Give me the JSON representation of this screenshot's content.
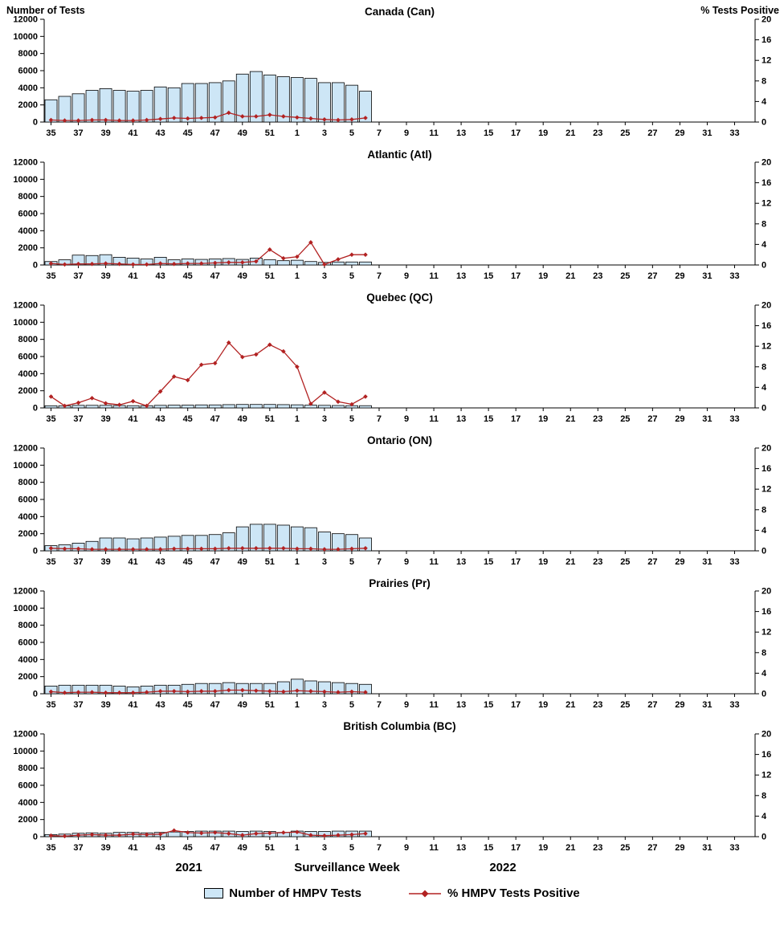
{
  "colors": {
    "bar_fill": "#CDE6F6",
    "bar_stroke": "#000000",
    "line": "#B22222",
    "axis": "#000000"
  },
  "chart_data": {
    "type": "bar",
    "subtype": "bar+line multipanel, bars on left axis, line with diamond markers on right axis",
    "x_axis": {
      "title": "Surveillance Week",
      "year_left": "2021",
      "year_right": "2022",
      "total_weeks": 52,
      "tick_labels": [
        "35",
        "37",
        "39",
        "41",
        "43",
        "45",
        "47",
        "49",
        "51",
        "1",
        "3",
        "5",
        "7",
        "9",
        "11",
        "13",
        "15",
        "17",
        "19",
        "21",
        "23",
        "25",
        "27",
        "29",
        "31",
        "33"
      ],
      "data_weeks": [
        "35",
        "36",
        "37",
        "38",
        "39",
        "40",
        "41",
        "42",
        "43",
        "44",
        "45",
        "46",
        "47",
        "48",
        "49",
        "50",
        "51",
        "52",
        "1",
        "2",
        "3",
        "4",
        "5",
        "6"
      ]
    },
    "y_left": {
      "title": "Number of Tests",
      "min": 0,
      "max": 12000,
      "tick_step": 2000
    },
    "y_right": {
      "title": "% Tests Positive",
      "min": 0,
      "max": 20,
      "tick_step": 4
    },
    "legend": [
      {
        "label": "Number of HMPV Tests",
        "type": "bar"
      },
      {
        "label": "% HMPV Tests Positive",
        "type": "line"
      }
    ],
    "panels": [
      {
        "title": "Canada (Can)",
        "tests": [
          2600,
          3000,
          3300,
          3700,
          3900,
          3700,
          3600,
          3700,
          4100,
          4000,
          4500,
          4500,
          4600,
          4800,
          5600,
          5900,
          5500,
          5300,
          5200,
          5100,
          4600,
          4600,
          4300,
          3600
        ],
        "pct_positive": [
          0.4,
          0.3,
          0.3,
          0.4,
          0.4,
          0.3,
          0.3,
          0.4,
          0.6,
          0.8,
          0.7,
          0.8,
          0.9,
          1.8,
          1.1,
          1.1,
          1.4,
          1.1,
          0.9,
          0.7,
          0.5,
          0.4,
          0.5,
          0.8
        ]
      },
      {
        "title": "Atlantic (Atl)",
        "tests": [
          400,
          600,
          1150,
          1100,
          1200,
          900,
          800,
          700,
          900,
          600,
          700,
          650,
          700,
          750,
          650,
          800,
          600,
          500,
          550,
          400,
          300,
          350,
          350,
          350
        ],
        "pct_positive": [
          0.3,
          0.1,
          0.2,
          0.2,
          0.3,
          0.2,
          0.1,
          0.1,
          0.3,
          0.2,
          0.3,
          0.3,
          0.4,
          0.5,
          0.5,
          0.7,
          3.0,
          1.3,
          1.6,
          4.4,
          0.1,
          1.1,
          2.0,
          2.0
        ]
      },
      {
        "title": "Quebec (QC)",
        "tests": [
          250,
          250,
          300,
          300,
          300,
          280,
          260,
          260,
          300,
          320,
          320,
          350,
          350,
          380,
          400,
          400,
          400,
          380,
          360,
          320,
          300,
          280,
          260,
          260
        ],
        "pct_positive": [
          2.2,
          0.4,
          1.0,
          1.9,
          0.9,
          0.6,
          1.3,
          0.4,
          3.2,
          6.1,
          5.4,
          8.4,
          8.7,
          12.7,
          9.9,
          10.4,
          12.3,
          11.0,
          8.0,
          0.8,
          3.0,
          1.2,
          0.7,
          2.2
        ]
      },
      {
        "title": "Ontario (ON)",
        "tests": [
          600,
          700,
          900,
          1100,
          1500,
          1500,
          1400,
          1500,
          1600,
          1700,
          1800,
          1800,
          1900,
          2100,
          2800,
          3100,
          3100,
          3000,
          2800,
          2700,
          2200,
          2000,
          1900,
          1500
        ],
        "pct_positive": [
          0.5,
          0.4,
          0.4,
          0.3,
          0.3,
          0.3,
          0.3,
          0.3,
          0.3,
          0.4,
          0.4,
          0.4,
          0.4,
          0.5,
          0.5,
          0.5,
          0.5,
          0.5,
          0.4,
          0.4,
          0.3,
          0.3,
          0.4,
          0.5
        ]
      },
      {
        "title": "Prairies (Pr)",
        "tests": [
          900,
          1000,
          1000,
          1000,
          1000,
          900,
          800,
          900,
          1000,
          1000,
          1100,
          1200,
          1200,
          1300,
          1200,
          1200,
          1200,
          1400,
          1700,
          1500,
          1400,
          1300,
          1200,
          1100
        ],
        "pct_positive": [
          0.4,
          0.2,
          0.3,
          0.3,
          0.2,
          0.2,
          0.2,
          0.3,
          0.5,
          0.5,
          0.4,
          0.5,
          0.5,
          0.7,
          0.7,
          0.6,
          0.5,
          0.4,
          0.6,
          0.5,
          0.4,
          0.3,
          0.4,
          0.3
        ]
      },
      {
        "title": "British Columbia (BC)",
        "tests": [
          250,
          300,
          400,
          450,
          400,
          500,
          500,
          450,
          500,
          550,
          600,
          650,
          650,
          650,
          600,
          650,
          600,
          500,
          650,
          600,
          600,
          650,
          650,
          650
        ],
        "pct_positive": [
          0.2,
          0.1,
          0.3,
          0.4,
          0.3,
          0.3,
          0.5,
          0.4,
          0.5,
          1.2,
          0.8,
          0.7,
          0.8,
          0.6,
          0.3,
          0.6,
          0.7,
          0.8,
          0.9,
          0.3,
          0.2,
          0.3,
          0.4,
          0.6
        ]
      }
    ]
  }
}
